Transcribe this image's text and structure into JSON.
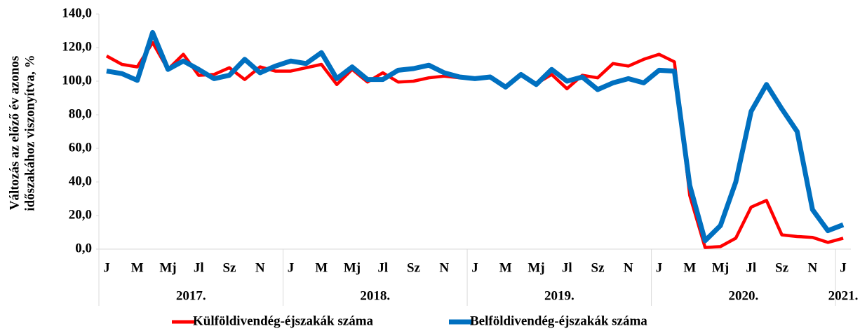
{
  "chart_data": {
    "type": "line",
    "y_label": [
      "Változás az előző év azonos",
      "időszakához viszonyítva, %"
    ],
    "categories": [
      "J",
      null,
      "M",
      null,
      "Mj",
      null,
      "Jl",
      null,
      "Sz",
      null,
      "N",
      null,
      "J",
      null,
      "M",
      null,
      "Mj",
      null,
      "Jl",
      null,
      "Sz",
      null,
      "N",
      null,
      "J",
      null,
      "M",
      null,
      "Mj",
      null,
      "Jl",
      null,
      "Sz",
      null,
      "N",
      null,
      "J",
      null,
      "M",
      null,
      "Mj",
      null,
      "Jl",
      null,
      "Sz",
      null,
      "N",
      null,
      "J"
    ],
    "years": [
      "2017.",
      "2018.",
      "2019.",
      "2020.",
      "2021."
    ],
    "series": [
      {
        "name": "Külföldivendég-éjszakák száma",
        "color": "#ff0000",
        "values": [
          115,
          110,
          108.5,
          123,
          107,
          116,
          103.5,
          104,
          108,
          101,
          108.5,
          106,
          106,
          108,
          110,
          98,
          107,
          99.5,
          105,
          99.5,
          100,
          102,
          103,
          102,
          101.5,
          102.5,
          96,
          104,
          98.5,
          104,
          95.5,
          103.5,
          102,
          110.5,
          109,
          113,
          116,
          111.5,
          32,
          1,
          1.5,
          6.5,
          25,
          29,
          8.5,
          7.5,
          7,
          4,
          6.5
        ]
      },
      {
        "name": "Belföldivendég-éjszakák száma",
        "color": "#0070c0",
        "values": [
          106,
          104.5,
          100.5,
          129,
          107,
          112,
          107,
          101.5,
          103.5,
          113,
          105,
          109,
          112,
          110.5,
          117,
          101.5,
          108.5,
          101,
          101,
          106.5,
          107.5,
          109.5,
          105,
          102.5,
          101.5,
          102.5,
          96.5,
          104,
          98,
          107,
          100,
          102.5,
          95,
          99,
          101.5,
          99,
          106.5,
          106,
          38,
          5,
          14,
          40,
          82,
          98,
          83.5,
          70,
          23.5,
          11,
          14.5
        ]
      }
    ],
    "ylim": [
      0,
      140
    ],
    "yticks": [
      {
        "value": 0,
        "label": "0,0"
      },
      {
        "value": 20,
        "label": "20,0"
      },
      {
        "value": 40,
        "label": "40,0"
      },
      {
        "value": 60,
        "label": "60,0"
      },
      {
        "value": 80,
        "label": "80,0"
      },
      {
        "value": 100,
        "label": "100,0"
      },
      {
        "value": 120,
        "label": "120,0"
      },
      {
        "value": 140,
        "label": "140,0"
      }
    ],
    "grid": false,
    "legend": "bottom"
  }
}
